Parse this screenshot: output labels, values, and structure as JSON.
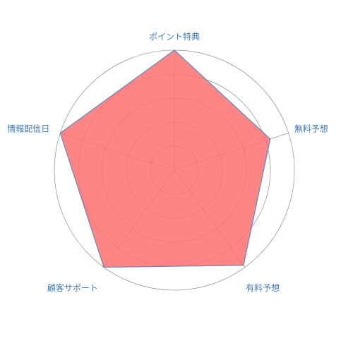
{
  "chart_data": {
    "type": "radar",
    "categories": [
      "ポイント特典",
      "無料予想",
      "有料予想",
      "顧客サポート",
      "情報配信日"
    ],
    "series": [
      {
        "values": [
          5,
          4.2,
          4.9,
          5,
          5
        ]
      }
    ],
    "rlim": [
      0,
      5
    ],
    "ring_levels": [
      1,
      2,
      3,
      4,
      5
    ],
    "grid": true,
    "colors": {
      "fill": "#ff6f6f",
      "stroke": "#5b8cc8",
      "grid": "#7a7a7a",
      "label": "#3d7ab8"
    }
  }
}
